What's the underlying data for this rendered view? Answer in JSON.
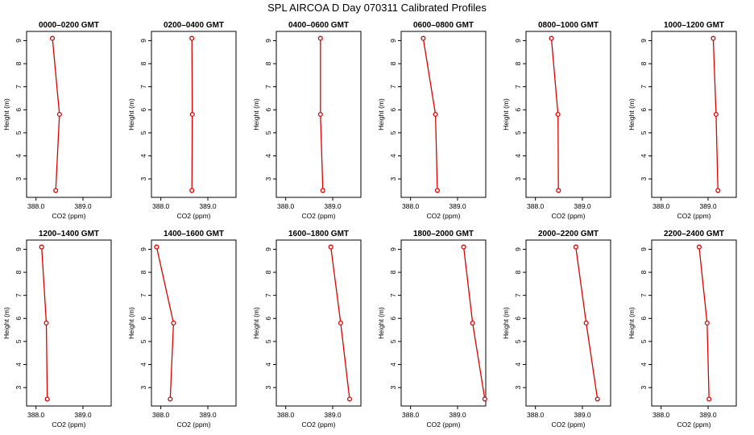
{
  "title": "SPL AIRCOA D  Day 070311  Calibrated Profiles",
  "colors": {
    "series": "#dd0000",
    "axis": "#000000"
  },
  "chart_data": [
    {
      "type": "line",
      "title": "0000–0200 GMT",
      "xlabel": "CO2 (ppm)",
      "ylabel": "Height (m)",
      "xlim": [
        387.8,
        389.6
      ],
      "ylim": [
        2.2,
        9.4
      ],
      "xticks": [
        "388.0",
        "389.0"
      ],
      "yticks": [
        "3",
        "4",
        "5",
        "6",
        "7",
        "8",
        "9"
      ],
      "x": [
        388.35,
        388.5,
        388.42
      ],
      "y": [
        9.1,
        5.8,
        2.5
      ]
    },
    {
      "type": "line",
      "title": "0200–0400 GMT",
      "xlabel": "CO2 (ppm)",
      "ylabel": "Height (m)",
      "xlim": [
        387.8,
        389.6
      ],
      "ylim": [
        2.2,
        9.4
      ],
      "xticks": [
        "388.0",
        "389.0"
      ],
      "yticks": [
        "3",
        "4",
        "5",
        "6",
        "7",
        "8",
        "9"
      ],
      "x": [
        388.66,
        388.67,
        388.66
      ],
      "y": [
        9.1,
        5.8,
        2.5
      ]
    },
    {
      "type": "line",
      "title": "0400–0600 GMT",
      "xlabel": "CO2 (ppm)",
      "ylabel": "Height (m)",
      "xlim": [
        387.8,
        389.6
      ],
      "ylim": [
        2.2,
        9.4
      ],
      "xticks": [
        "388.0",
        "389.0"
      ],
      "yticks": [
        "3",
        "4",
        "5",
        "6",
        "7",
        "8",
        "9"
      ],
      "x": [
        388.74,
        388.74,
        388.79
      ],
      "y": [
        9.1,
        5.8,
        2.5
      ]
    },
    {
      "type": "line",
      "title": "0600–0800 GMT",
      "xlabel": "CO2 (ppm)",
      "ylabel": "Height (m)",
      "xlim": [
        387.8,
        389.6
      ],
      "ylim": [
        2.2,
        9.4
      ],
      "xticks": [
        "388.0",
        "389.0"
      ],
      "yticks": [
        "3",
        "4",
        "5",
        "6",
        "7",
        "8",
        "9"
      ],
      "x": [
        388.27,
        388.53,
        388.57
      ],
      "y": [
        9.1,
        5.8,
        2.5
      ]
    },
    {
      "type": "line",
      "title": "0800–1000 GMT",
      "xlabel": "CO2 (ppm)",
      "ylabel": "Height (m)",
      "xlim": [
        387.8,
        389.6
      ],
      "ylim": [
        2.2,
        9.4
      ],
      "xticks": [
        "388.0",
        "389.0"
      ],
      "yticks": [
        "3",
        "4",
        "5",
        "6",
        "7",
        "8",
        "9"
      ],
      "x": [
        388.34,
        388.48,
        388.49
      ],
      "y": [
        9.1,
        5.8,
        2.5
      ]
    },
    {
      "type": "line",
      "title": "1000–1200 GMT",
      "xlabel": "CO2 (ppm)",
      "ylabel": "Height (m)",
      "xlim": [
        387.8,
        389.6
      ],
      "ylim": [
        2.2,
        9.4
      ],
      "xticks": [
        "388.0",
        "389.0"
      ],
      "yticks": [
        "3",
        "4",
        "5",
        "6",
        "7",
        "8",
        "9"
      ],
      "x": [
        389.11,
        389.17,
        389.21
      ],
      "y": [
        9.1,
        5.8,
        2.5
      ]
    },
    {
      "type": "line",
      "title": "1200–1400 GMT",
      "xlabel": "CO2 (ppm)",
      "ylabel": "Height (m)",
      "xlim": [
        387.8,
        389.6
      ],
      "ylim": [
        2.2,
        9.4
      ],
      "xticks": [
        "388.0",
        "389.0"
      ],
      "yticks": [
        "3",
        "4",
        "5",
        "6",
        "7",
        "8",
        "9"
      ],
      "x": [
        388.12,
        388.22,
        388.24
      ],
      "y": [
        9.1,
        5.8,
        2.5
      ]
    },
    {
      "type": "line",
      "title": "1400–1600 GMT",
      "xlabel": "CO2 (ppm)",
      "ylabel": "Height (m)",
      "xlim": [
        387.8,
        389.6
      ],
      "ylim": [
        2.2,
        9.4
      ],
      "xticks": [
        "388.0",
        "389.0"
      ],
      "yticks": [
        "3",
        "4",
        "5",
        "6",
        "7",
        "8",
        "9"
      ],
      "x": [
        387.91,
        388.27,
        388.2
      ],
      "y": [
        9.1,
        5.8,
        2.5
      ]
    },
    {
      "type": "line",
      "title": "1600–1800 GMT",
      "xlabel": "CO2 (ppm)",
      "ylabel": "Height (m)",
      "xlim": [
        387.8,
        389.6
      ],
      "ylim": [
        2.2,
        9.4
      ],
      "xticks": [
        "388.0",
        "389.0"
      ],
      "yticks": [
        "3",
        "4",
        "5",
        "6",
        "7",
        "8",
        "9"
      ],
      "x": [
        388.96,
        389.17,
        389.36
      ],
      "y": [
        9.1,
        5.8,
        2.5
      ]
    },
    {
      "type": "line",
      "title": "1800–2000 GMT",
      "xlabel": "CO2 (ppm)",
      "ylabel": "Height (m)",
      "xlim": [
        387.8,
        389.6
      ],
      "ylim": [
        2.2,
        9.4
      ],
      "xticks": [
        "388.0",
        "389.0"
      ],
      "yticks": [
        "3",
        "4",
        "5",
        "6",
        "7",
        "8",
        "9"
      ],
      "x": [
        389.13,
        389.32,
        389.58
      ],
      "y": [
        9.1,
        5.8,
        2.5
      ]
    },
    {
      "type": "line",
      "title": "2000–2200 GMT",
      "xlabel": "CO2 (ppm)",
      "ylabel": "Height (m)",
      "xlim": [
        387.8,
        389.6
      ],
      "ylim": [
        2.2,
        9.4
      ],
      "xticks": [
        "388.0",
        "389.0"
      ],
      "yticks": [
        "3",
        "4",
        "5",
        "6",
        "7",
        "8",
        "9"
      ],
      "x": [
        388.86,
        389.08,
        389.32
      ],
      "y": [
        9.1,
        5.8,
        2.5
      ]
    },
    {
      "type": "line",
      "title": "2200–2400 GMT",
      "xlabel": "CO2 (ppm)",
      "ylabel": "Height (m)",
      "xlim": [
        387.8,
        389.6
      ],
      "ylim": [
        2.2,
        9.4
      ],
      "xticks": [
        "388.0",
        "389.0"
      ],
      "yticks": [
        "3",
        "4",
        "5",
        "6",
        "7",
        "8",
        "9"
      ],
      "x": [
        388.81,
        388.98,
        389.02
      ],
      "y": [
        9.1,
        5.8,
        2.5
      ]
    }
  ]
}
